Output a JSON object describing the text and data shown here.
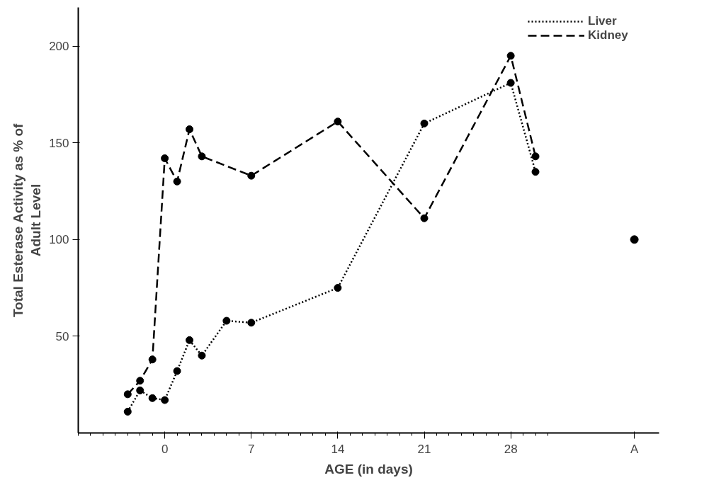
{
  "chart_data": {
    "type": "line",
    "xlabel": "AGE (in days)",
    "ylabel": "Total Esterase Activity as % of\nAdult Level",
    "xlim": [
      -7,
      40
    ],
    "ylim": [
      0,
      220
    ],
    "xticks": [
      0,
      7,
      14,
      21,
      28,
      {
        "value": 38,
        "label": "A"
      }
    ],
    "yticks": [
      50,
      100,
      150,
      200
    ],
    "grid": false,
    "legend": "top right",
    "marker": "circle",
    "series": [
      {
        "name": "Liver",
        "color": "#000000",
        "line_style": "dotted",
        "x": [
          -3,
          -2,
          -1,
          0,
          1,
          2,
          3,
          5,
          7,
          14,
          21,
          28,
          30
        ],
        "values": [
          11,
          22,
          18,
          17,
          32,
          48,
          40,
          58,
          57,
          75,
          160,
          181,
          135
        ]
      },
      {
        "name": "Kidney",
        "color": "#000000",
        "line_style": "dashed",
        "x": [
          -3,
          -2,
          -1,
          0,
          1,
          2,
          3,
          7,
          14,
          21,
          28,
          30
        ],
        "values": [
          20,
          27,
          38,
          142,
          130,
          157,
          143,
          133,
          161,
          111,
          195,
          143
        ]
      },
      {
        "type": "scatter",
        "color": "#000000",
        "x": [
          38
        ],
        "values": [
          100
        ]
      }
    ]
  }
}
